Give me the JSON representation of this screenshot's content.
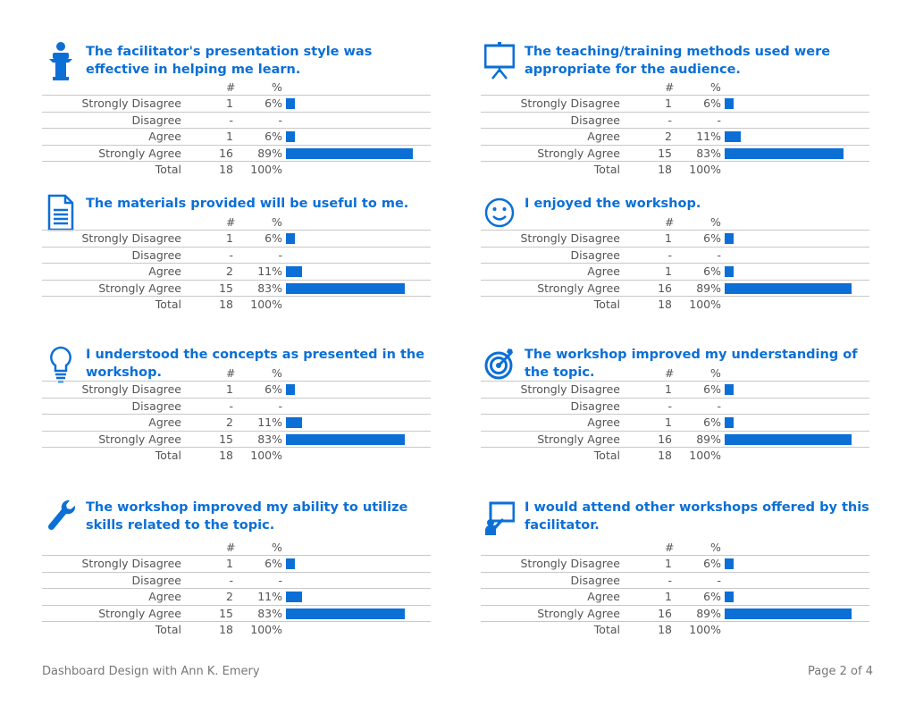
{
  "colors": {
    "accent": "#0b6fd6",
    "text": "#555555",
    "rule": "#c8c8c8"
  },
  "header": {
    "count": "#",
    "percent": "%"
  },
  "footer": {
    "left": "Dashboard Design with Ann K. Emery",
    "right": "Page 2 of 4"
  },
  "chart_data": [
    {
      "type": "bar",
      "icon": "podium-icon",
      "title": "The facilitator's presentation style was effective in helping me learn.",
      "categories": [
        "Strongly Disagree",
        "Disagree",
        "Agree",
        "Strongly Agree"
      ],
      "counts": [
        "1",
        "-",
        "1",
        "16"
      ],
      "percents": [
        "6%",
        "-",
        "6%",
        "89%"
      ],
      "values": [
        6,
        0,
        6,
        89
      ],
      "total_label": "Total",
      "total_count": "18",
      "total_percent": "100%"
    },
    {
      "type": "bar",
      "icon": "presentation-board-icon",
      "title": "The teaching/training methods used were appropriate for the audience.",
      "categories": [
        "Strongly Disagree",
        "Disagree",
        "Agree",
        "Strongly Agree"
      ],
      "counts": [
        "1",
        "-",
        "2",
        "15"
      ],
      "percents": [
        "6%",
        "-",
        "11%",
        "83%"
      ],
      "values": [
        6,
        0,
        11,
        83
      ],
      "total_label": "Total",
      "total_count": "18",
      "total_percent": "100%"
    },
    {
      "type": "bar",
      "icon": "document-icon",
      "title": "The materials provided will be useful to me.",
      "categories": [
        "Strongly Disagree",
        "Disagree",
        "Agree",
        "Strongly Agree"
      ],
      "counts": [
        "1",
        "-",
        "2",
        "15"
      ],
      "percents": [
        "6%",
        "-",
        "11%",
        "83%"
      ],
      "values": [
        6,
        0,
        11,
        83
      ],
      "total_label": "Total",
      "total_count": "18",
      "total_percent": "100%"
    },
    {
      "type": "bar",
      "icon": "smiley-icon",
      "title": "I enjoyed the workshop.",
      "categories": [
        "Strongly Disagree",
        "Disagree",
        "Agree",
        "Strongly Agree"
      ],
      "counts": [
        "1",
        "-",
        "1",
        "16"
      ],
      "percents": [
        "6%",
        "-",
        "6%",
        "89%"
      ],
      "values": [
        6,
        0,
        6,
        89
      ],
      "total_label": "Total",
      "total_count": "18",
      "total_percent": "100%"
    },
    {
      "type": "bar",
      "icon": "lightbulb-icon",
      "title": "I understood the concepts as presented in the workshop.",
      "categories": [
        "Strongly Disagree",
        "Disagree",
        "Agree",
        "Strongly Agree"
      ],
      "counts": [
        "1",
        "-",
        "2",
        "15"
      ],
      "percents": [
        "6%",
        "-",
        "11%",
        "83%"
      ],
      "values": [
        6,
        0,
        11,
        83
      ],
      "total_label": "Total",
      "total_count": "18",
      "total_percent": "100%"
    },
    {
      "type": "bar",
      "icon": "target-icon",
      "title": "The workshop improved my understanding of the topic.",
      "categories": [
        "Strongly Disagree",
        "Disagree",
        "Agree",
        "Strongly Agree"
      ],
      "counts": [
        "1",
        "-",
        "1",
        "16"
      ],
      "percents": [
        "6%",
        "-",
        "6%",
        "89%"
      ],
      "values": [
        6,
        0,
        6,
        89
      ],
      "total_label": "Total",
      "total_count": "18",
      "total_percent": "100%"
    },
    {
      "type": "bar",
      "icon": "wrench-icon",
      "title": "The workshop improved my ability to utilize skills related to the topic.",
      "categories": [
        "Strongly Disagree",
        "Disagree",
        "Agree",
        "Strongly Agree"
      ],
      "counts": [
        "1",
        "-",
        "2",
        "15"
      ],
      "percents": [
        "6%",
        "-",
        "11%",
        "83%"
      ],
      "values": [
        6,
        0,
        11,
        83
      ],
      "total_label": "Total",
      "total_count": "18",
      "total_percent": "100%"
    },
    {
      "type": "bar",
      "icon": "teacher-board-icon",
      "title": "I would attend other workshops offered by this facilitator.",
      "categories": [
        "Strongly Disagree",
        "Disagree",
        "Agree",
        "Strongly Agree"
      ],
      "counts": [
        "1",
        "-",
        "1",
        "16"
      ],
      "percents": [
        "6%",
        "-",
        "6%",
        "89%"
      ],
      "values": [
        6,
        0,
        6,
        89
      ],
      "total_label": "Total",
      "total_count": "18",
      "total_percent": "100%"
    }
  ]
}
